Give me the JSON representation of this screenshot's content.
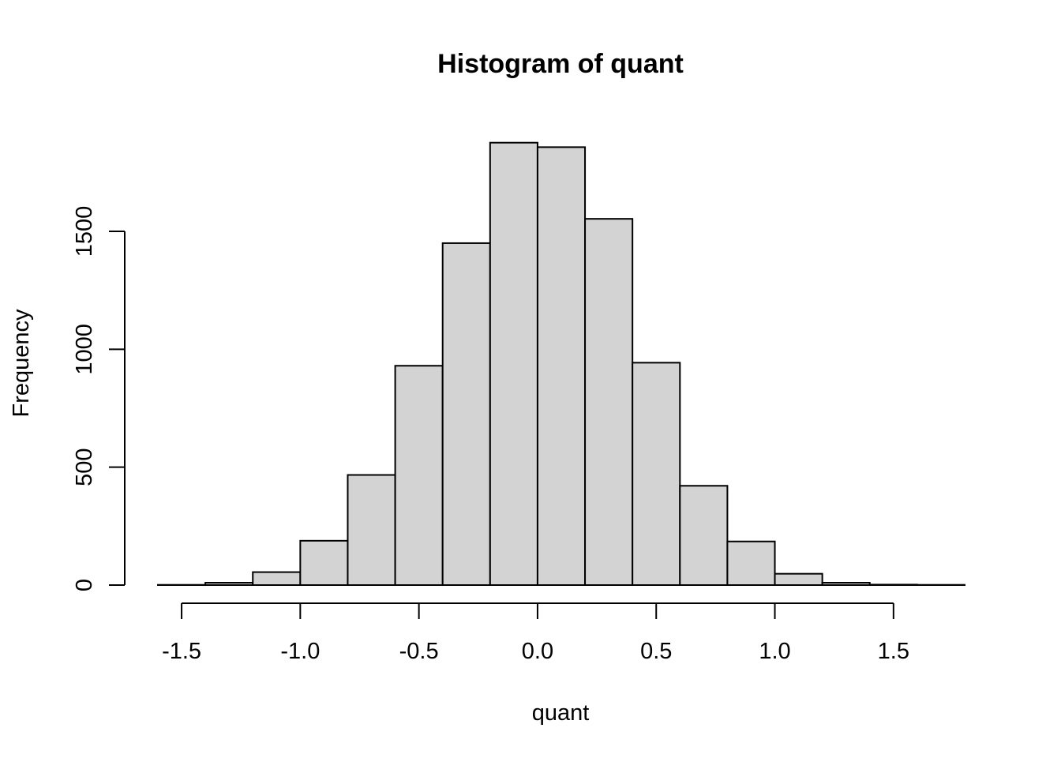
{
  "chart_data": {
    "type": "bar",
    "subtype": "histogram",
    "title": "Histogram of quant",
    "xlabel": "quant",
    "ylabel": "Frequency",
    "bar_color": "#d3d3d3",
    "bin_edges": [
      -1.6,
      -1.4,
      -1.2,
      -1.0,
      -0.8,
      -0.6,
      -0.4,
      -0.2,
      0.0,
      0.2,
      0.4,
      0.6,
      0.8,
      1.0,
      1.2,
      1.4,
      1.6,
      1.8
    ],
    "values": [
      1,
      10,
      55,
      188,
      467,
      930,
      1450,
      1876,
      1857,
      1553,
      943,
      421,
      185,
      48,
      10,
      2,
      1
    ],
    "x_ticks": [
      -1.5,
      -1.0,
      -0.5,
      0.0,
      0.5,
      1.0,
      1.5
    ],
    "x_tick_labels": [
      "-1.5",
      "-1.0",
      "-0.5",
      "0.0",
      "0.5",
      "1.0",
      "1.5"
    ],
    "y_ticks": [
      0,
      500,
      1000,
      1500
    ],
    "y_tick_labels": [
      "0",
      "500",
      "1000",
      "1500"
    ],
    "xlim": [
      -1.6,
      1.8
    ],
    "ylim": [
      0,
      1876
    ],
    "grid": false,
    "legend": "none"
  }
}
